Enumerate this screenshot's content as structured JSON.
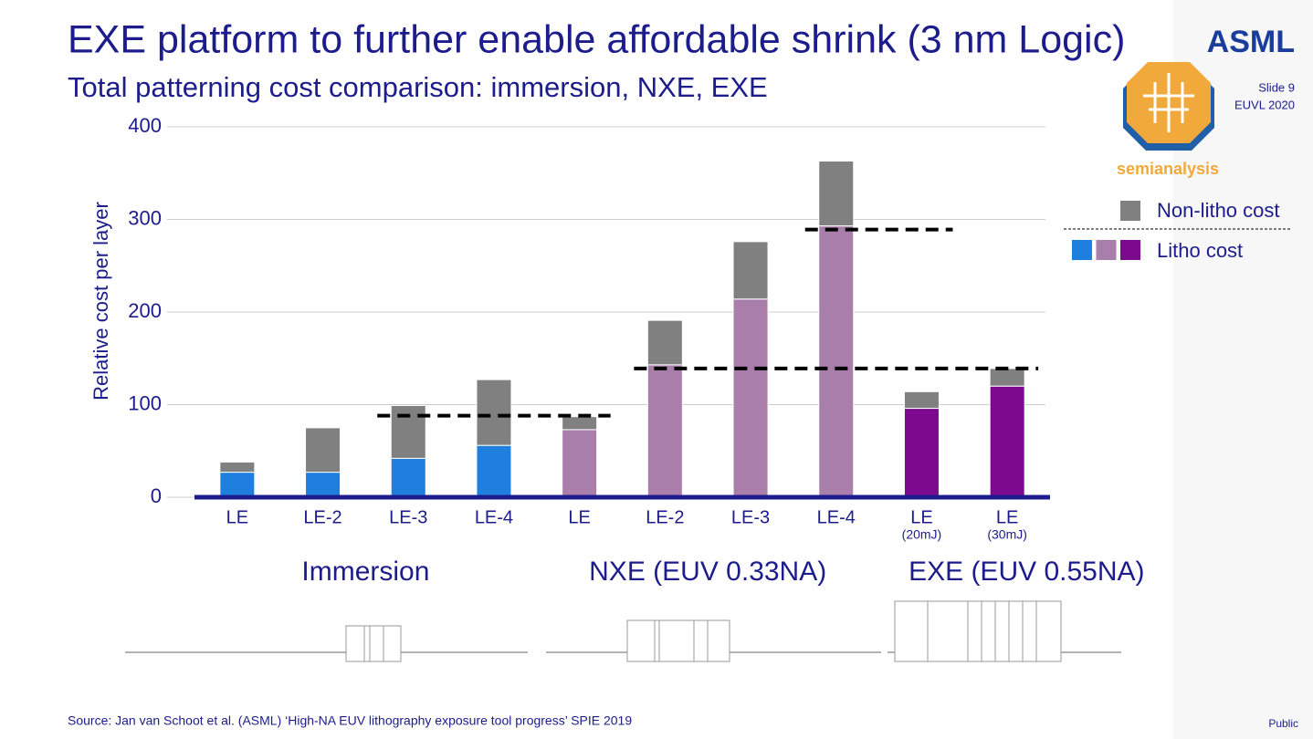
{
  "header": {
    "title": "EXE platform to further enable affordable shrink (3 nm Logic)",
    "subtitle": "Total patterning cost comparison: immersion, NXE, EXE",
    "logo": "ASML",
    "slide": "Slide 9",
    "event": "EUVL 2020",
    "badge": "semianalysis"
  },
  "chart_data": {
    "type": "bar",
    "stacked": true,
    "y_label": "Relative cost per layer",
    "categories": [
      "LE",
      "LE-2",
      "LE-3",
      "LE-4",
      "LE",
      "LE-2",
      "LE-3",
      "LE-4",
      "LE",
      "LE"
    ],
    "category_notes": [
      null,
      null,
      null,
      null,
      null,
      null,
      null,
      null,
      "(20mJ)",
      "(30mJ)"
    ],
    "groups": [
      "Immersion",
      "NXE (EUV 0.33NA)",
      "EXE (EUV 0.55NA)"
    ],
    "series": [
      {
        "name": "Litho cost",
        "colors": [
          "#1f7fdf",
          "#1f7fdf",
          "#1f7fdf",
          "#1f7fdf",
          "#a97eab",
          "#a97eab",
          "#a97eab",
          "#a97eab",
          "#7d0a8e",
          "#7d0a8e"
        ],
        "values": [
          27,
          27,
          42,
          56,
          73,
          143,
          214,
          293,
          96,
          120
        ]
      },
      {
        "name": "Non-litho cost",
        "color": "#808080",
        "values": [
          11,
          48,
          57,
          71,
          14,
          48,
          62,
          70,
          18,
          19
        ]
      }
    ],
    "reference_lines": [
      88,
      139,
      289
    ],
    "ylim": [
      0,
      400
    ],
    "yticks": [
      0,
      100,
      200,
      300,
      400
    ],
    "grid": true
  },
  "footer": {
    "source": "Source: Jan van Schoot et al. (ASML) ‘High-NA EUV lithography exposure tool progress’ SPIE 2019",
    "classification": "Public"
  }
}
